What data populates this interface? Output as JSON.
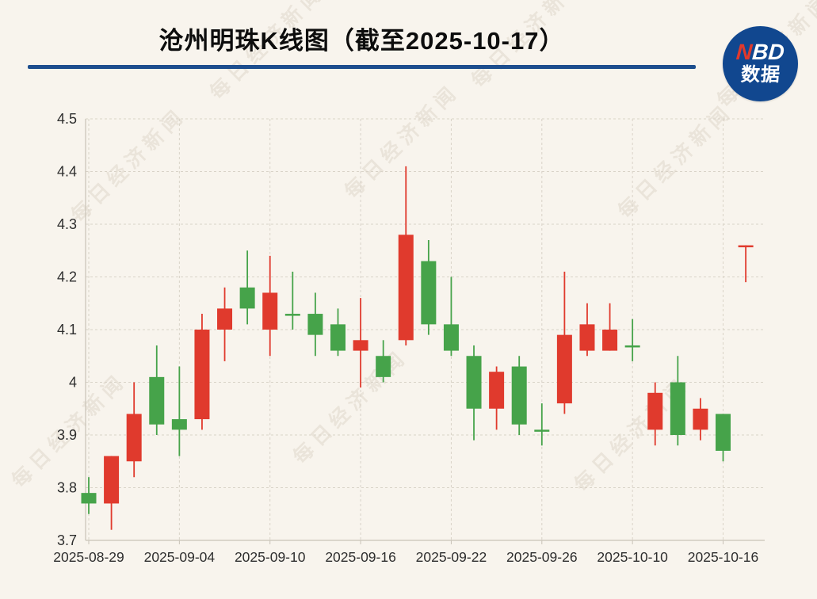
{
  "title": "沧州明珠K线图（截至2025-10-17）",
  "logo": {
    "line1_red": "N",
    "line1_rest": "BD",
    "line2": "数据",
    "bg_color": "#11478f",
    "accent_color": "#e0392c"
  },
  "watermark": {
    "text": "每日经济新闻"
  },
  "colors": {
    "background": "#f8f4ed",
    "underline": "#1d4e8e",
    "grid": "#d9d3c8",
    "axis": "#c8c2b7",
    "label": "#2e2e2e",
    "up": "#e03a2d",
    "down": "#46a34a"
  },
  "chart_data": {
    "type": "candlestick",
    "title": "沧州明珠K线图（截至2025-10-17）",
    "ylabel": "",
    "xlabel": "",
    "ylim": [
      3.7,
      4.5
    ],
    "grid": "dashed",
    "y_ticks": [
      "4.5",
      "4.4",
      "4.3",
      "4.2",
      "4.1",
      "4",
      "3.9",
      "3.8",
      "3.7"
    ],
    "y_tick_values": [
      4.5,
      4.4,
      4.3,
      4.2,
      4.1,
      4.0,
      3.9,
      3.8,
      3.7
    ],
    "x_ticks": [
      {
        "label": "2025-08-29",
        "index": 0
      },
      {
        "label": "2025-09-04",
        "index": 4
      },
      {
        "label": "2025-09-10",
        "index": 8
      },
      {
        "label": "2025-09-16",
        "index": 12
      },
      {
        "label": "2025-09-22",
        "index": 16
      },
      {
        "label": "2025-09-26",
        "index": 20
      },
      {
        "label": "2025-10-10",
        "index": 24
      },
      {
        "label": "2025-10-16",
        "index": 28
      }
    ],
    "up_means": "price rose (red, Chinese convention)",
    "down_means": "price fell (green, Chinese convention)",
    "candles": [
      {
        "date": "2025-08-29",
        "open": 3.79,
        "close": 3.77,
        "low": 3.75,
        "high": 3.82,
        "dir": "down"
      },
      {
        "date": "2025-09-01",
        "open": 3.77,
        "close": 3.86,
        "low": 3.72,
        "high": 3.86,
        "dir": "up"
      },
      {
        "date": "2025-09-02",
        "open": 3.85,
        "close": 3.94,
        "low": 3.82,
        "high": 4.0,
        "dir": "up"
      },
      {
        "date": "2025-09-03",
        "open": 4.01,
        "close": 3.92,
        "low": 3.9,
        "high": 4.07,
        "dir": "down"
      },
      {
        "date": "2025-09-04",
        "open": 3.93,
        "close": 3.91,
        "low": 3.86,
        "high": 4.03,
        "dir": "down"
      },
      {
        "date": "2025-09-05",
        "open": 3.93,
        "close": 4.1,
        "low": 3.91,
        "high": 4.13,
        "dir": "up"
      },
      {
        "date": "2025-09-08",
        "open": 4.1,
        "close": 4.14,
        "low": 4.04,
        "high": 4.18,
        "dir": "up"
      },
      {
        "date": "2025-09-09",
        "open": 4.18,
        "close": 4.14,
        "low": 4.11,
        "high": 4.25,
        "dir": "down"
      },
      {
        "date": "2025-09-10",
        "open": 4.1,
        "close": 4.17,
        "low": 4.05,
        "high": 4.24,
        "dir": "up"
      },
      {
        "date": "2025-09-11",
        "open": 4.13,
        "close": 4.13,
        "low": 4.1,
        "high": 4.21,
        "dir": "down"
      },
      {
        "date": "2025-09-12",
        "open": 4.13,
        "close": 4.09,
        "low": 4.05,
        "high": 4.17,
        "dir": "down"
      },
      {
        "date": "2025-09-15",
        "open": 4.11,
        "close": 4.06,
        "low": 4.05,
        "high": 4.14,
        "dir": "down"
      },
      {
        "date": "2025-09-16",
        "open": 4.06,
        "close": 4.08,
        "low": 3.99,
        "high": 4.16,
        "dir": "up"
      },
      {
        "date": "2025-09-17",
        "open": 4.05,
        "close": 4.01,
        "low": 4.0,
        "high": 4.08,
        "dir": "down"
      },
      {
        "date": "2025-09-18",
        "open": 4.08,
        "close": 4.28,
        "low": 4.07,
        "high": 4.41,
        "dir": "up"
      },
      {
        "date": "2025-09-19",
        "open": 4.23,
        "close": 4.11,
        "low": 4.09,
        "high": 4.27,
        "dir": "down"
      },
      {
        "date": "2025-09-22",
        "open": 4.11,
        "close": 4.06,
        "low": 4.05,
        "high": 4.2,
        "dir": "down"
      },
      {
        "date": "2025-09-23",
        "open": 4.05,
        "close": 3.95,
        "low": 3.89,
        "high": 4.07,
        "dir": "down"
      },
      {
        "date": "2025-09-24",
        "open": 3.95,
        "close": 4.02,
        "low": 3.91,
        "high": 4.03,
        "dir": "up"
      },
      {
        "date": "2025-09-25",
        "open": 4.03,
        "close": 3.92,
        "low": 3.9,
        "high": 4.05,
        "dir": "down"
      },
      {
        "date": "2025-09-26",
        "open": 3.91,
        "close": 3.91,
        "low": 3.88,
        "high": 3.96,
        "dir": "down"
      },
      {
        "date": "2025-09-29",
        "open": 3.96,
        "close": 4.09,
        "low": 3.94,
        "high": 4.21,
        "dir": "up"
      },
      {
        "date": "2025-09-30",
        "open": 4.06,
        "close": 4.11,
        "low": 4.05,
        "high": 4.15,
        "dir": "up"
      },
      {
        "date": "2025-10-09",
        "open": 4.06,
        "close": 4.1,
        "low": 4.06,
        "high": 4.15,
        "dir": "up"
      },
      {
        "date": "2025-10-10",
        "open": 4.07,
        "close": 4.07,
        "low": 4.04,
        "high": 4.12,
        "dir": "down"
      },
      {
        "date": "2025-10-13",
        "open": 3.91,
        "close": 3.98,
        "low": 3.88,
        "high": 4.0,
        "dir": "up"
      },
      {
        "date": "2025-10-14",
        "open": 4.0,
        "close": 3.9,
        "low": 3.88,
        "high": 4.05,
        "dir": "down"
      },
      {
        "date": "2025-10-15",
        "open": 3.91,
        "close": 3.95,
        "low": 3.89,
        "high": 3.97,
        "dir": "up"
      },
      {
        "date": "2025-10-16",
        "open": 3.94,
        "close": 3.87,
        "low": 3.85,
        "high": 3.94,
        "dir": "down"
      },
      {
        "date": "2025-10-17",
        "open": 4.26,
        "close": 4.26,
        "low": 4.19,
        "high": 4.26,
        "dir": "up"
      }
    ]
  }
}
